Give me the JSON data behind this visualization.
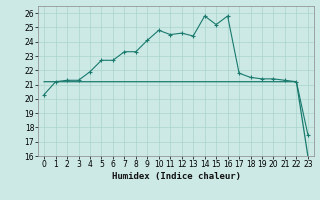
{
  "title": "",
  "xlabel": "Humidex (Indice chaleur)",
  "background_color": "#cce9e5",
  "line_color": "#1a7a6e",
  "xlim": [
    -0.5,
    23.5
  ],
  "ylim": [
    16,
    26.5
  ],
  "xticks": [
    0,
    1,
    2,
    3,
    4,
    5,
    6,
    7,
    8,
    9,
    10,
    11,
    12,
    13,
    14,
    15,
    16,
    17,
    18,
    19,
    20,
    21,
    22,
    23
  ],
  "yticks": [
    16,
    17,
    18,
    19,
    20,
    21,
    22,
    23,
    24,
    25,
    26
  ],
  "curve1_x": [
    0,
    1,
    2,
    3,
    4,
    5,
    6,
    7,
    8,
    9,
    10,
    11,
    12,
    13,
    14,
    15,
    16,
    17,
    18,
    19,
    20,
    21,
    22,
    23
  ],
  "curve1_y": [
    20.3,
    21.2,
    21.3,
    21.3,
    21.9,
    22.7,
    22.7,
    23.3,
    23.3,
    24.1,
    24.8,
    24.5,
    24.6,
    24.4,
    25.8,
    25.2,
    25.8,
    21.8,
    21.5,
    21.4,
    21.4,
    21.3,
    21.2,
    17.5
  ],
  "curve2_x": [
    0,
    1,
    2,
    3,
    4,
    5,
    6,
    7,
    8,
    9,
    10,
    11,
    12,
    13,
    14,
    15,
    16,
    17,
    18,
    19,
    20,
    21,
    22,
    23
  ],
  "curve2_y": [
    21.2,
    21.2,
    21.2,
    21.2,
    21.2,
    21.2,
    21.2,
    21.2,
    21.2,
    21.2,
    21.2,
    21.2,
    21.2,
    21.2,
    21.2,
    21.2,
    21.2,
    21.2,
    21.2,
    21.2,
    21.2,
    21.2,
    21.2,
    16.0
  ],
  "grid_color": "#aad4ce",
  "tick_fontsize": 5.5,
  "xlabel_fontsize": 6.5
}
